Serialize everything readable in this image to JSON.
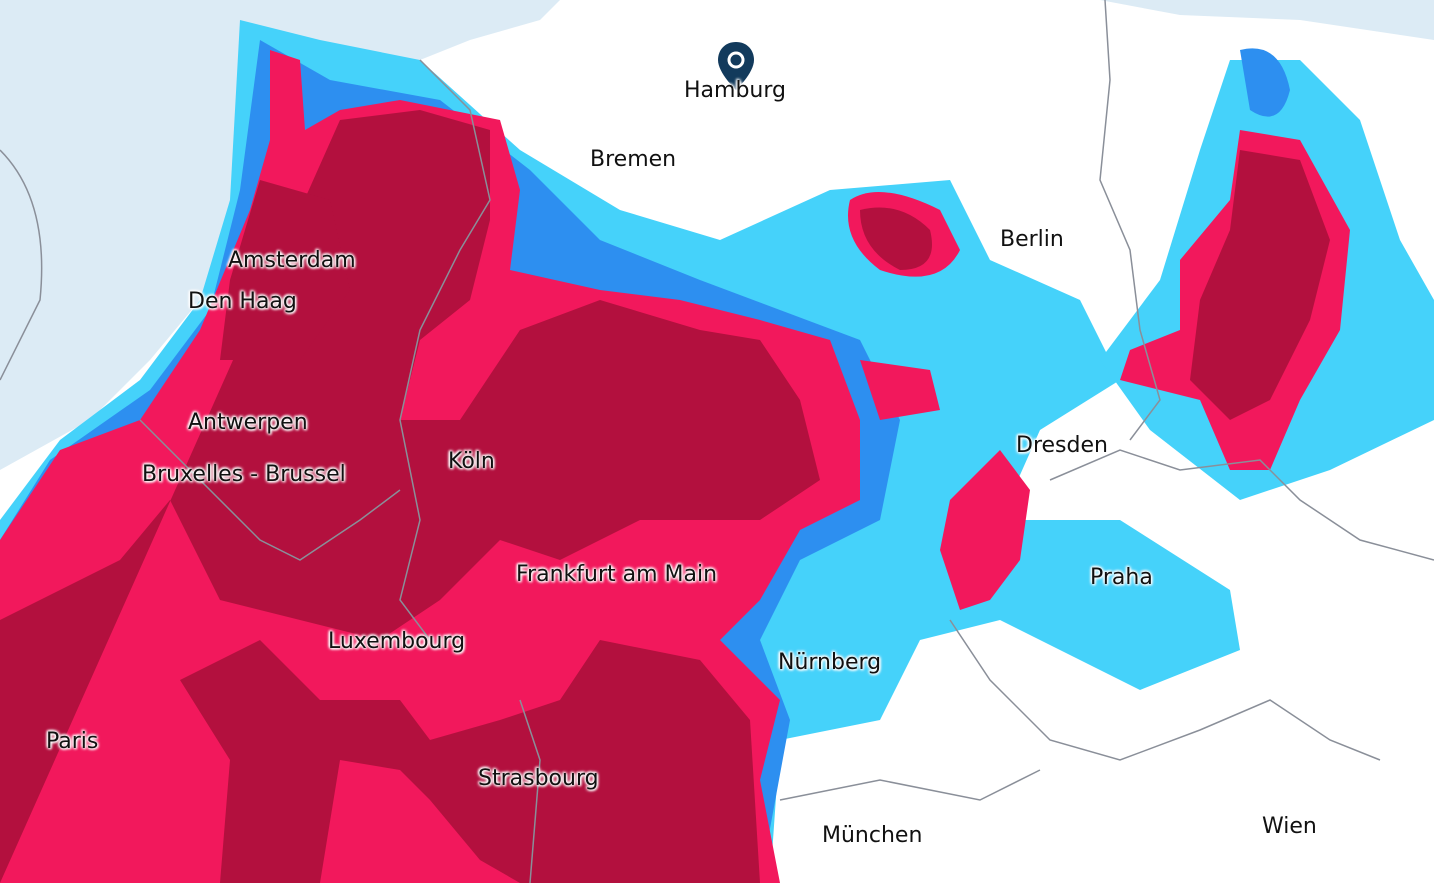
{
  "map": {
    "type": "precipitation-radar",
    "colors": {
      "sea": "#dcebf5",
      "land": "#ffffff",
      "light_rain": "#45d2fa",
      "moderate_rain": "#2d8ff0",
      "heavy_rain": "#f2185c",
      "very_heavy_rain": "#b3103e",
      "borders": "#8a8f99",
      "pin": "#123a5c"
    },
    "marker": {
      "icon": "map-pin-icon",
      "city": "Hamburg"
    },
    "cities": [
      {
        "id": "hamburg",
        "label": "Hamburg"
      },
      {
        "id": "bremen",
        "label": "Bremen"
      },
      {
        "id": "berlin",
        "label": "Berlin"
      },
      {
        "id": "amsterdam",
        "label": "Amsterdam"
      },
      {
        "id": "den-haag",
        "label": "Den Haag"
      },
      {
        "id": "antwerpen",
        "label": "Antwerpen"
      },
      {
        "id": "bruxelles",
        "label": "Bruxelles - Brussel"
      },
      {
        "id": "koln",
        "label": "Köln"
      },
      {
        "id": "dresden",
        "label": "Dresden"
      },
      {
        "id": "frankfurt",
        "label": "Frankfurt am Main"
      },
      {
        "id": "praha",
        "label": "Praha"
      },
      {
        "id": "luxembourg",
        "label": "Luxembourg"
      },
      {
        "id": "nurnberg",
        "label": "Nürnberg"
      },
      {
        "id": "paris",
        "label": "Paris"
      },
      {
        "id": "strasbourg",
        "label": "Strasbourg"
      },
      {
        "id": "munchen",
        "label": "München"
      },
      {
        "id": "wien",
        "label": "Wien"
      }
    ]
  }
}
